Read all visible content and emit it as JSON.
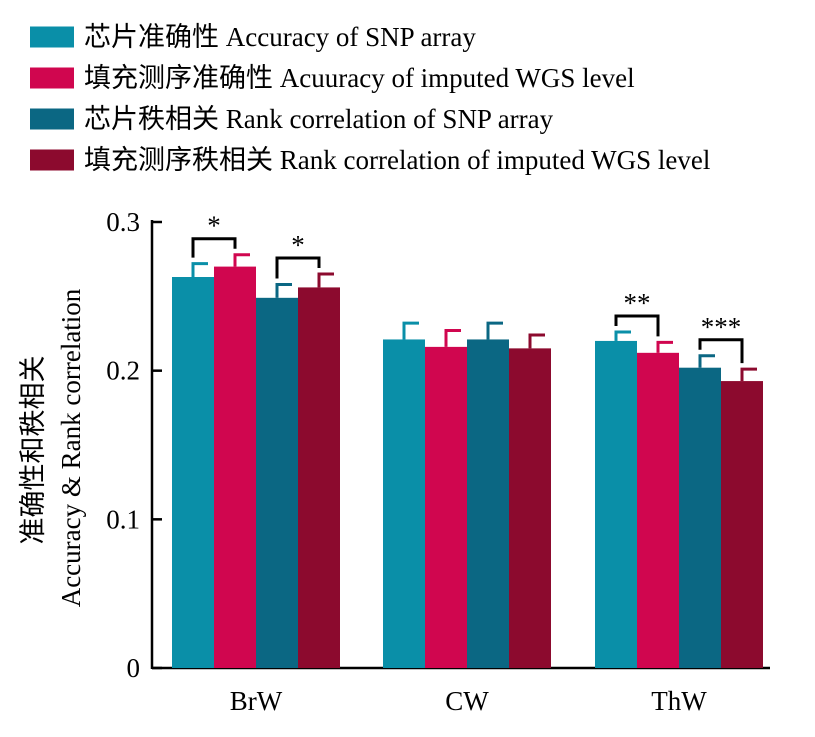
{
  "chart_data": {
    "type": "bar",
    "categories": [
      "BrW",
      "CW",
      "ThW"
    ],
    "series": [
      {
        "name": "芯片准确性 Accuracy of SNP array",
        "color": "#0a8fa8",
        "values": [
          0.263,
          0.221,
          0.22
        ],
        "errors": [
          0.009,
          0.011,
          0.006
        ]
      },
      {
        "name": "填充测序准确性 Acuuracy of imputed WGS level",
        "color": "#d0064f",
        "values": [
          0.27,
          0.216,
          0.212
        ],
        "errors": [
          0.008,
          0.011,
          0.007
        ]
      },
      {
        "name": "芯片秩相关 Rank correlation of SNP array",
        "color": "#0b6783",
        "values": [
          0.249,
          0.221,
          0.202
        ],
        "errors": [
          0.009,
          0.011,
          0.008
        ]
      },
      {
        "name": "填充测序秩相关 Rank correlation of imputed WGS level",
        "color": "#8c0a2e",
        "values": [
          0.256,
          0.215,
          0.193
        ],
        "errors": [
          0.009,
          0.009,
          0.008
        ]
      }
    ],
    "ylabel_cn": "准确性和秩相关",
    "ylabel_en": "Accuracy & Rank correlation",
    "ylim": [
      0,
      0.3
    ],
    "yticks": [
      {
        "value": 0,
        "label": "0"
      },
      {
        "value": 0.1,
        "label": "0.1"
      },
      {
        "value": 0.2,
        "label": "0.2"
      },
      {
        "value": 0.3,
        "label": "0.3"
      }
    ],
    "grid": false,
    "legend_position": "top-left",
    "significance": [
      {
        "category": 0,
        "from": 0,
        "to": 1,
        "label": "*"
      },
      {
        "category": 0,
        "from": 2,
        "to": 3,
        "label": "*"
      },
      {
        "category": 2,
        "from": 0,
        "to": 1,
        "label": "**"
      },
      {
        "category": 2,
        "from": 2,
        "to": 3,
        "label": "***"
      }
    ]
  }
}
